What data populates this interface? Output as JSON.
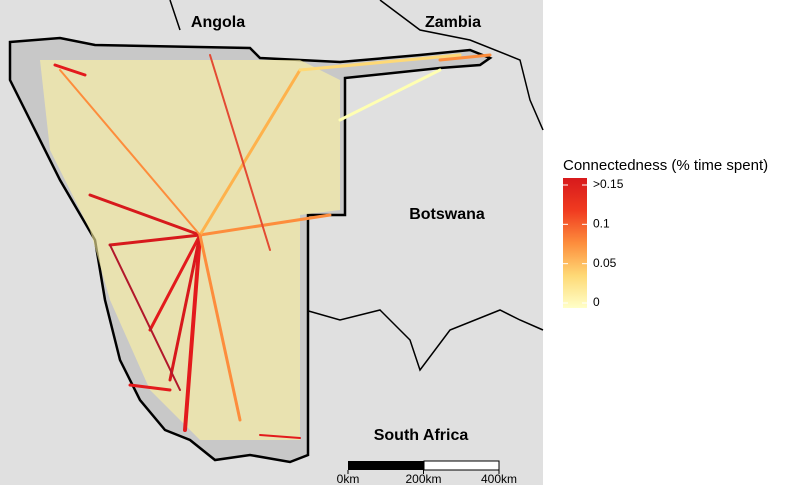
{
  "map": {
    "labels": [
      "Angola",
      "Zambia",
      "Botswana",
      "South Africa"
    ]
  },
  "legend": {
    "title": "Connectedness (% time spent)",
    "ticks": [
      {
        "value": 0.15,
        "label": ">0.15"
      },
      0.1,
      0.05,
      0
    ],
    "lim": [
      0,
      0.15
    ],
    "colors": [
      "#ffffc8",
      "#fed976",
      "#fd8d3c",
      "#f03b20",
      "#d7191c"
    ]
  },
  "scale_bar": {
    "ticks": [
      {
        "value": 0,
        "label": "0km"
      },
      {
        "value": 200,
        "label": "200km"
      },
      {
        "value": 400,
        "label": "400km"
      }
    ],
    "lim": [
      0,
      400
    ]
  }
}
